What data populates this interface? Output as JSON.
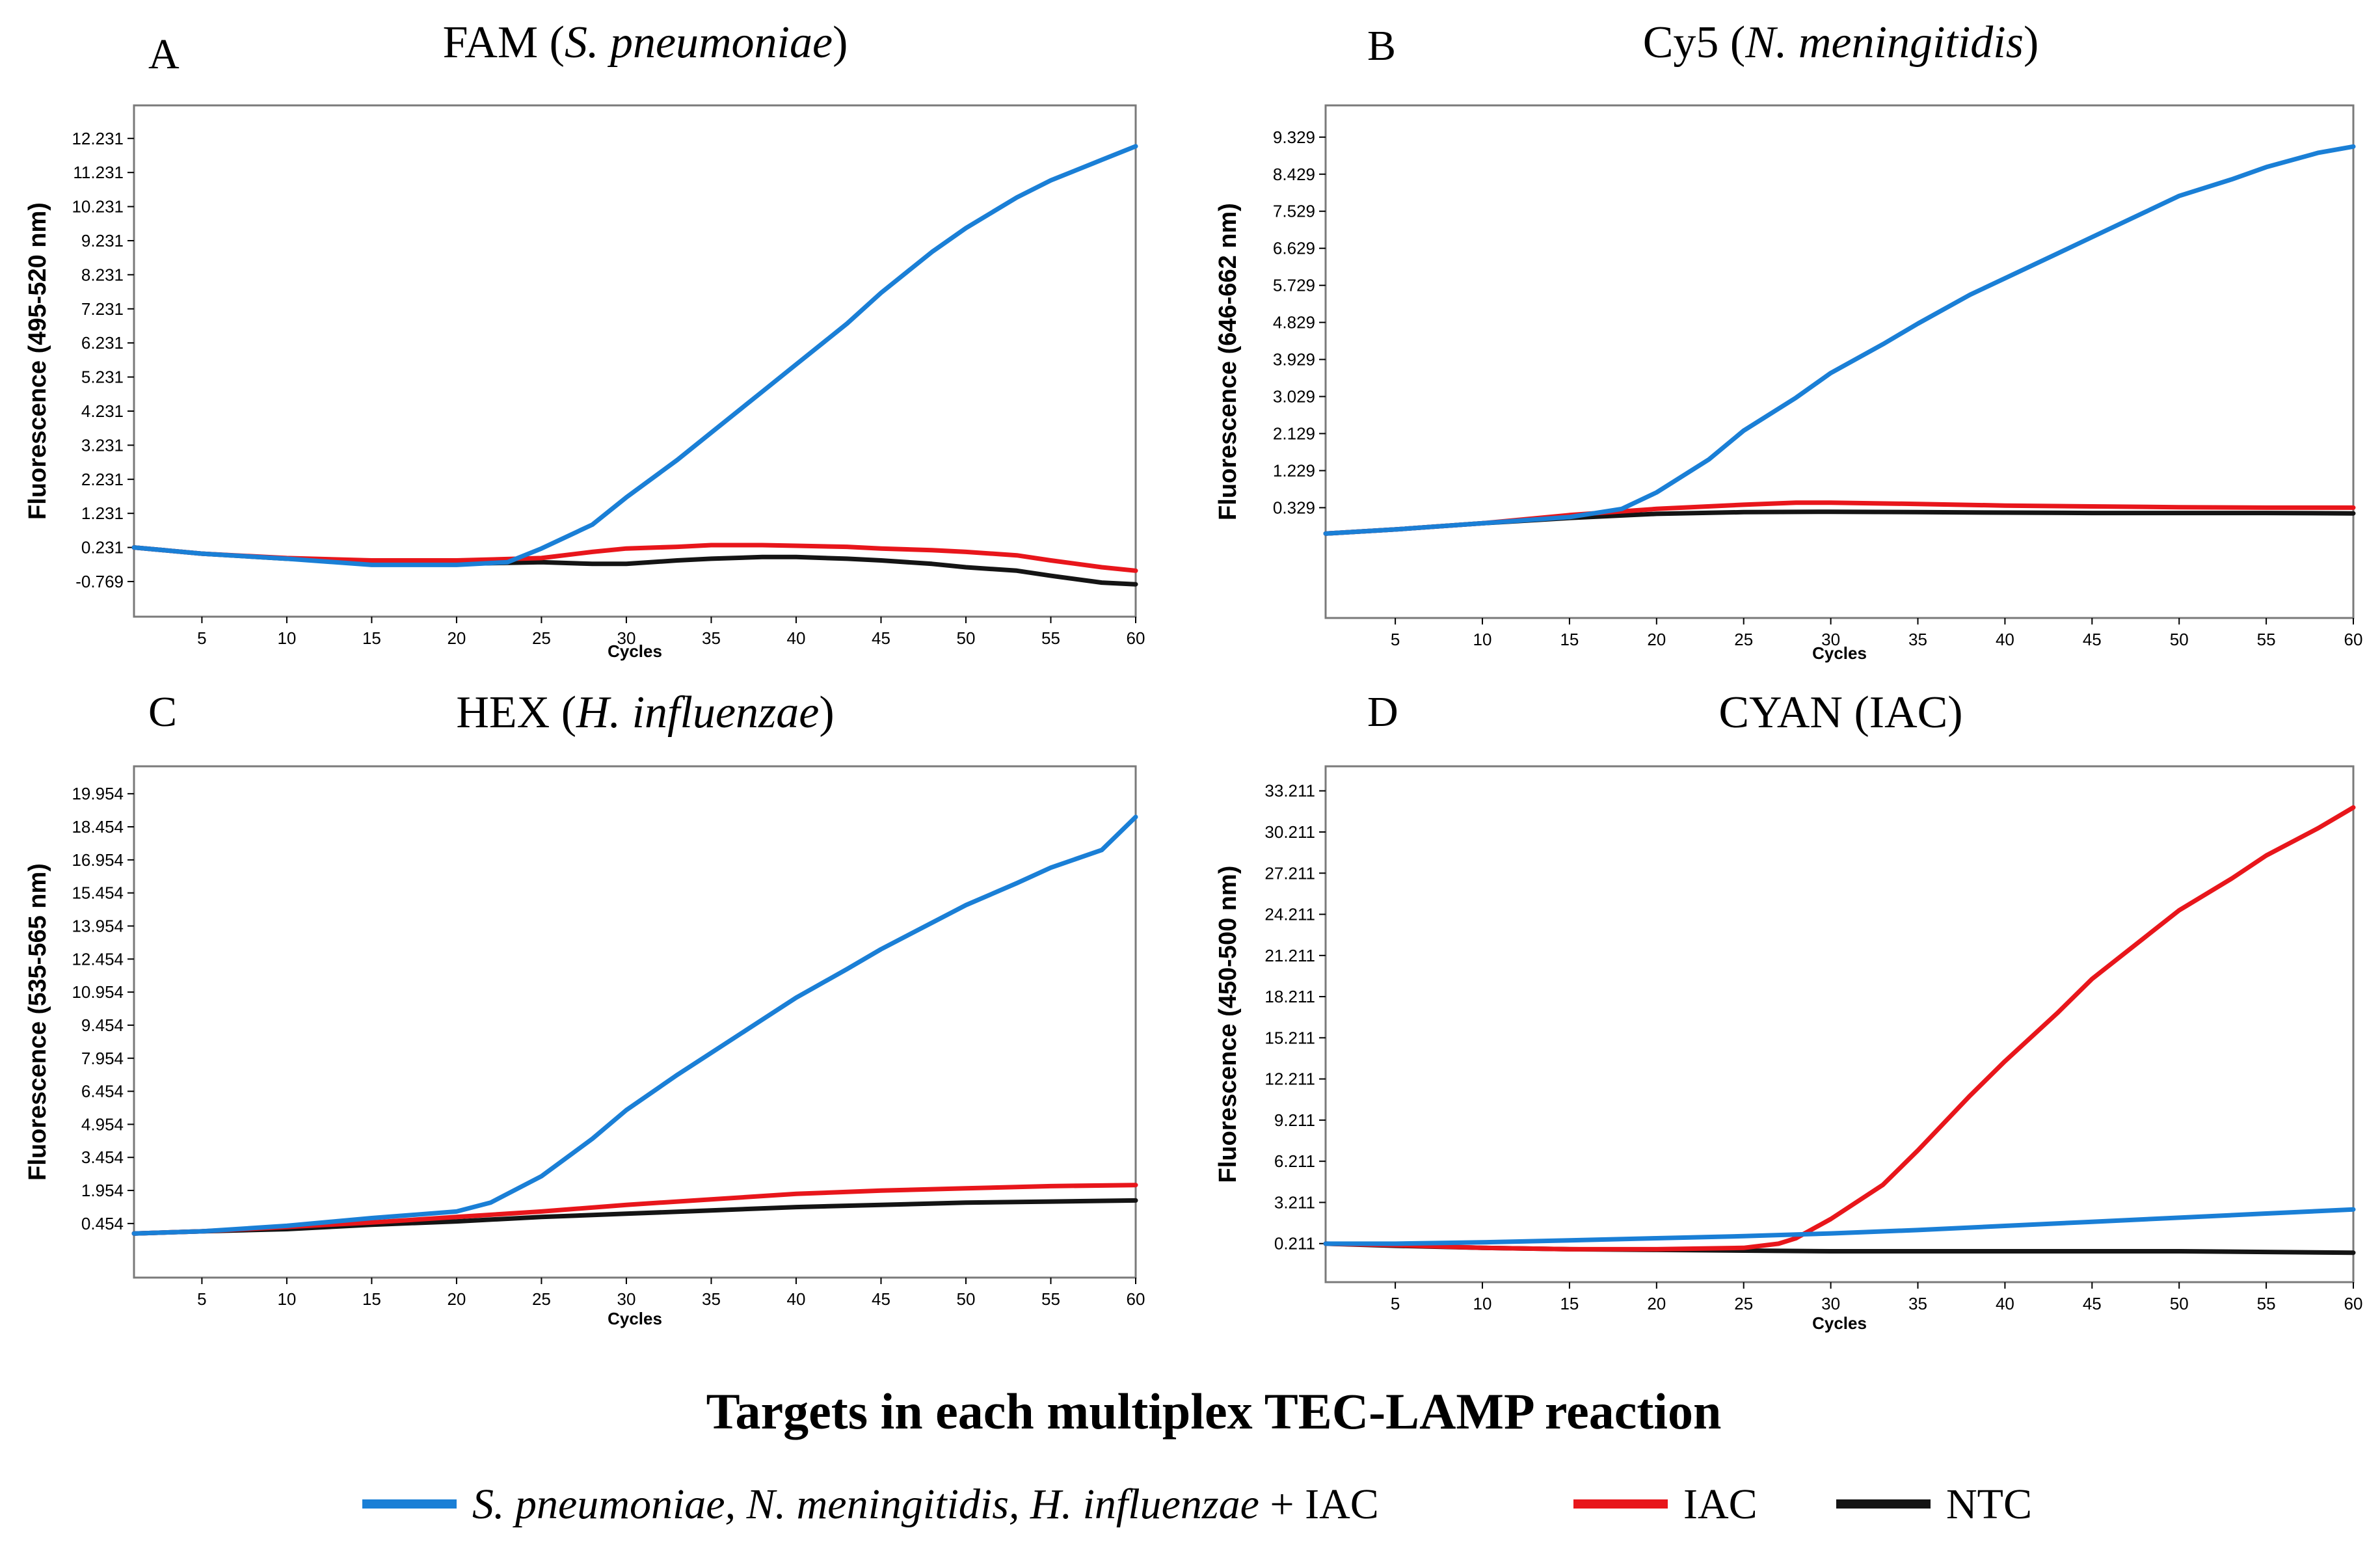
{
  "colors": {
    "blue": "#1a7fd6",
    "red": "#e8161b",
    "black": "#141414"
  },
  "legend": {
    "title": "Targets in each multiplex TEC-LAMP reaction",
    "items": [
      {
        "key": "blue",
        "parts": [
          {
            "text": "S. pneumoniae, N. meningitidis, H. influenzae",
            "italic": true
          },
          {
            "text": " + IAC",
            "italic": false
          }
        ]
      },
      {
        "key": "red",
        "parts": [
          {
            "text": "IAC",
            "italic": false
          }
        ]
      },
      {
        "key": "black",
        "parts": [
          {
            "text": "NTC",
            "italic": false
          }
        ]
      }
    ]
  },
  "chart_data": [
    {
      "type": "line",
      "panel": "A",
      "title_parts": [
        {
          "text": "FAM (",
          "italic": false
        },
        {
          "text": "S. pneumoniae",
          "italic": true
        },
        {
          "text": ")",
          "italic": false
        }
      ],
      "xlabel": "Cycles",
      "ylabel": "Fluorescence (495-520 nm)",
      "xlim": [
        1,
        60
      ],
      "ylim": [
        -1.8,
        13.2
      ],
      "xticks": [
        5,
        10,
        15,
        20,
        25,
        30,
        35,
        40,
        45,
        50,
        55,
        60
      ],
      "ytick_labels": [
        "12.231",
        "11.231",
        "10.231",
        "9.231",
        "8.231",
        "7.231",
        "6.231",
        "5.231",
        "4.231",
        "3.231",
        "2.231",
        "1.231",
        "0.231",
        "-0.769"
      ],
      "series": [
        {
          "key": "blue",
          "x": [
            1,
            5,
            10,
            15,
            20,
            23,
            25,
            28,
            30,
            33,
            35,
            38,
            40,
            43,
            45,
            48,
            50,
            53,
            55,
            58,
            60
          ],
          "y": [
            0.23,
            0.05,
            -0.1,
            -0.28,
            -0.28,
            -0.2,
            0.2,
            0.9,
            1.7,
            2.8,
            3.6,
            4.8,
            5.6,
            6.8,
            7.7,
            8.9,
            9.6,
            10.5,
            11.0,
            11.6,
            12.0
          ]
        },
        {
          "key": "red",
          "x": [
            1,
            5,
            10,
            15,
            20,
            25,
            28,
            30,
            33,
            35,
            38,
            40,
            43,
            45,
            48,
            50,
            53,
            55,
            58,
            60
          ],
          "y": [
            0.23,
            0.05,
            -0.08,
            -0.15,
            -0.15,
            -0.08,
            0.1,
            0.2,
            0.25,
            0.3,
            0.3,
            0.28,
            0.25,
            0.2,
            0.15,
            0.1,
            0.0,
            -0.15,
            -0.35,
            -0.45
          ]
        },
        {
          "key": "black",
          "x": [
            1,
            5,
            10,
            15,
            20,
            25,
            28,
            30,
            33,
            35,
            38,
            40,
            43,
            45,
            48,
            50,
            53,
            55,
            58,
            60
          ],
          "y": [
            0.23,
            0.05,
            -0.1,
            -0.2,
            -0.25,
            -0.2,
            -0.25,
            -0.25,
            -0.15,
            -0.1,
            -0.05,
            -0.05,
            -0.1,
            -0.15,
            -0.25,
            -0.35,
            -0.45,
            -0.6,
            -0.8,
            -0.85
          ]
        }
      ]
    },
    {
      "type": "line",
      "panel": "B",
      "title_parts": [
        {
          "text": "Cy5 (",
          "italic": false
        },
        {
          "text": "N. meningitidis",
          "italic": true
        },
        {
          "text": ")",
          "italic": false
        }
      ],
      "xlabel": "Cycles",
      "ylabel": "Fluorescence (646-662 nm)",
      "xlim": [
        1,
        60
      ],
      "ylim": [
        -2.35,
        10.1
      ],
      "xticks": [
        5,
        10,
        15,
        20,
        25,
        30,
        35,
        40,
        45,
        50,
        55,
        60
      ],
      "ytick_labels": [
        "9.329",
        "8.429",
        "7.529",
        "6.629",
        "5.729",
        "4.829",
        "3.929",
        "3.029",
        "2.129",
        "1.229",
        "0.329"
      ],
      "series": [
        {
          "key": "blue",
          "x": [
            1,
            5,
            10,
            15,
            18,
            20,
            23,
            25,
            28,
            30,
            33,
            35,
            38,
            40,
            43,
            45,
            48,
            50,
            53,
            55,
            58,
            60
          ],
          "y": [
            -0.3,
            -0.2,
            -0.05,
            0.1,
            0.3,
            0.7,
            1.5,
            2.2,
            3.0,
            3.6,
            4.3,
            4.8,
            5.5,
            5.9,
            6.5,
            6.9,
            7.5,
            7.9,
            8.3,
            8.6,
            8.95,
            9.1
          ]
        },
        {
          "key": "red",
          "x": [
            1,
            5,
            10,
            15,
            20,
            25,
            28,
            30,
            35,
            40,
            45,
            50,
            55,
            60
          ],
          "y": [
            -0.3,
            -0.2,
            -0.05,
            0.15,
            0.3,
            0.4,
            0.45,
            0.45,
            0.42,
            0.38,
            0.36,
            0.34,
            0.33,
            0.33
          ]
        },
        {
          "key": "black",
          "x": [
            1,
            5,
            10,
            15,
            20,
            25,
            30,
            35,
            40,
            45,
            50,
            55,
            60
          ],
          "y": [
            -0.3,
            -0.2,
            -0.05,
            0.08,
            0.18,
            0.22,
            0.23,
            0.22,
            0.21,
            0.2,
            0.2,
            0.2,
            0.19
          ]
        }
      ]
    },
    {
      "type": "line",
      "panel": "C",
      "title_parts": [
        {
          "text": "HEX (",
          "italic": false
        },
        {
          "text": "H. influenzae",
          "italic": true
        },
        {
          "text": ")",
          "italic": false
        }
      ],
      "xlabel": "Cycles",
      "ylabel": "Fluorescence (535-565 nm)",
      "xlim": [
        1,
        60
      ],
      "ylim": [
        -2.0,
        21.2
      ],
      "xticks": [
        5,
        10,
        15,
        20,
        25,
        30,
        35,
        40,
        45,
        50,
        55,
        60
      ],
      "ytick_labels": [
        "19.954",
        "18.454",
        "16.954",
        "15.454",
        "13.954",
        "12.454",
        "10.954",
        "9.454",
        "7.954",
        "6.454",
        "4.954",
        "3.454",
        "1.954",
        "0.454"
      ],
      "series": [
        {
          "key": "blue",
          "x": [
            1,
            5,
            10,
            15,
            20,
            22,
            25,
            28,
            30,
            33,
            35,
            38,
            40,
            43,
            45,
            48,
            50,
            53,
            55,
            58,
            60
          ],
          "y": [
            0.0,
            0.1,
            0.35,
            0.7,
            1.0,
            1.4,
            2.6,
            4.3,
            5.6,
            7.2,
            8.2,
            9.7,
            10.7,
            12.0,
            12.9,
            14.1,
            14.9,
            15.9,
            16.6,
            17.4,
            18.9
          ]
        },
        {
          "key": "red",
          "x": [
            1,
            5,
            10,
            15,
            20,
            25,
            30,
            35,
            40,
            45,
            50,
            55,
            60
          ],
          "y": [
            0.0,
            0.1,
            0.3,
            0.5,
            0.75,
            1.0,
            1.3,
            1.55,
            1.8,
            1.95,
            2.05,
            2.15,
            2.2
          ]
        },
        {
          "key": "black",
          "x": [
            1,
            5,
            10,
            15,
            20,
            25,
            30,
            35,
            40,
            45,
            50,
            55,
            60
          ],
          "y": [
            0.0,
            0.1,
            0.2,
            0.4,
            0.55,
            0.75,
            0.9,
            1.05,
            1.2,
            1.3,
            1.4,
            1.45,
            1.5
          ]
        }
      ]
    },
    {
      "type": "line",
      "panel": "D",
      "title_parts": [
        {
          "text": "CYAN (IAC)",
          "italic": false
        }
      ],
      "xlabel": "Cycles",
      "ylabel": "Fluorescence (450-500 nm)",
      "xlim": [
        1,
        60
      ],
      "ylim": [
        -2.6,
        35.0
      ],
      "xticks": [
        5,
        10,
        15,
        20,
        25,
        30,
        35,
        40,
        45,
        50,
        55,
        60
      ],
      "ytick_labels": [
        "33.211",
        "30.211",
        "27.211",
        "24.211",
        "21.211",
        "18.211",
        "15.211",
        "12.211",
        "9.211",
        "6.211",
        "3.211",
        "0.211"
      ],
      "series": [
        {
          "key": "blue",
          "x": [
            1,
            5,
            10,
            15,
            20,
            25,
            30,
            35,
            40,
            45,
            50,
            55,
            60
          ],
          "y": [
            0.2,
            0.2,
            0.3,
            0.45,
            0.6,
            0.75,
            0.95,
            1.2,
            1.5,
            1.8,
            2.1,
            2.4,
            2.7
          ]
        },
        {
          "key": "red",
          "x": [
            1,
            5,
            10,
            15,
            20,
            25,
            27,
            28,
            30,
            33,
            35,
            38,
            40,
            43,
            45,
            48,
            50,
            53,
            55,
            58,
            60
          ],
          "y": [
            0.2,
            0.1,
            -0.1,
            -0.2,
            -0.2,
            -0.1,
            0.2,
            0.6,
            2.0,
            4.5,
            7.0,
            11.0,
            13.5,
            17.0,
            19.5,
            22.5,
            24.5,
            26.8,
            28.5,
            30.5,
            32.0
          ]
        },
        {
          "key": "black",
          "x": [
            1,
            5,
            10,
            15,
            20,
            25,
            30,
            35,
            40,
            45,
            50,
            55,
            60
          ],
          "y": [
            0.2,
            0.05,
            -0.1,
            -0.2,
            -0.25,
            -0.3,
            -0.35,
            -0.35,
            -0.35,
            -0.35,
            -0.35,
            -0.4,
            -0.45
          ]
        }
      ]
    }
  ]
}
